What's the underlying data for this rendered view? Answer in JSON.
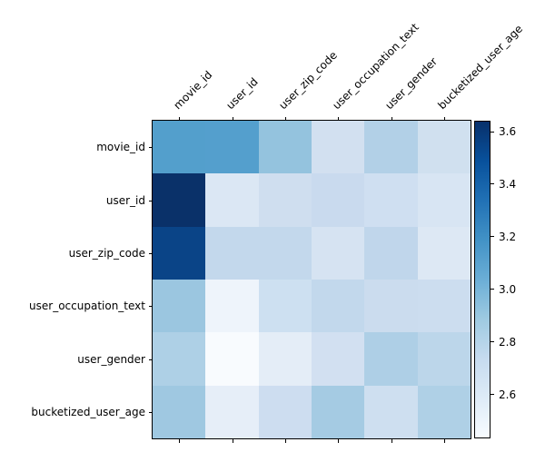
{
  "figure": {
    "background": "#ffffff",
    "axis_color": "#000000",
    "text_color": "#000000"
  },
  "chart_data": {
    "type": "heatmap",
    "title": "",
    "colormap": "Blues",
    "grid": false,
    "legend_position": "right-colorbar",
    "rows": [
      "movie_id",
      "user_id",
      "user_zip_code",
      "user_occupation_text",
      "user_gender",
      "bucketized_user_age"
    ],
    "columns": [
      "movie_id",
      "user_id",
      "user_zip_code",
      "user_occupation_text",
      "user_gender",
      "bucketized_user_age"
    ],
    "values": [
      [
        3.12,
        3.13,
        2.91,
        2.66,
        2.81,
        2.67
      ],
      [
        3.64,
        2.6,
        2.68,
        2.71,
        2.68,
        2.62
      ],
      [
        3.55,
        2.74,
        2.74,
        2.63,
        2.76,
        2.59
      ],
      [
        2.89,
        2.48,
        2.69,
        2.75,
        2.7,
        2.7
      ],
      [
        2.82,
        2.44,
        2.55,
        2.66,
        2.82,
        2.77
      ],
      [
        2.88,
        2.53,
        2.69,
        2.86,
        2.68,
        2.82
      ]
    ],
    "cell_colors": [
      [
        "#539fcc",
        "#549fcd",
        "#94c3de",
        "#d2e0f0",
        "#b2d0e7",
        "#d0e0ef"
      ],
      [
        "#0a3169",
        "#dbe7f4",
        "#cfdeef",
        "#c9daee",
        "#cfdff1",
        "#d8e5f3"
      ],
      [
        "#0a4487",
        "#c3d8ec",
        "#c3d8ec",
        "#d6e3f2",
        "#c0d6eb",
        "#dde8f4"
      ],
      [
        "#9bc6e0",
        "#eef4fb",
        "#cde0f1",
        "#c2d8ec",
        "#cbdcee",
        "#ccddef"
      ],
      [
        "#aed0e6",
        "#f8fbfe",
        "#e4edf7",
        "#d2e0f1",
        "#aecfe6",
        "#bcd6ea"
      ],
      [
        "#9fc8e1",
        "#e6eef8",
        "#cdddf0",
        "#a5cbe3",
        "#cedff0",
        "#afd0e6"
      ]
    ],
    "colorbar": {
      "ticks": [
        "3.6",
        "3.4",
        "3.2",
        "3.0",
        "2.8",
        "2.6"
      ],
      "vmin": 2.43,
      "vmax": 3.64,
      "gradient_stops": [
        "#08306b",
        "#08519c",
        "#2171b5",
        "#4292c6",
        "#6baed6",
        "#9ecae1",
        "#c6dbef",
        "#deebf7",
        "#f7fbff"
      ]
    }
  }
}
